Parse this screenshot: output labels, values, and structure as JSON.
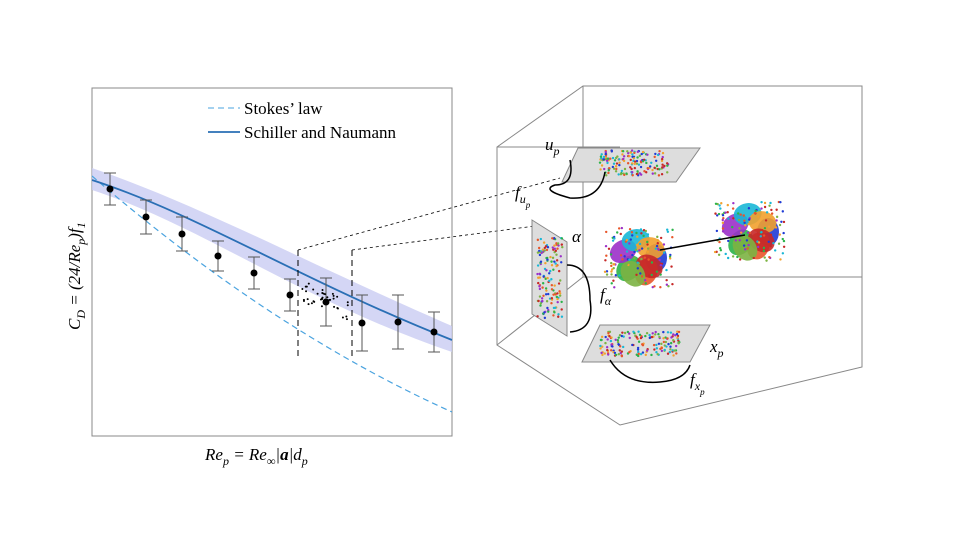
{
  "legend": {
    "items": [
      {
        "label": "Stokes’ law"
      },
      {
        "label": "Schiller and Naumann"
      }
    ]
  },
  "y_axis_label": [
    {
      "text": "C"
    },
    {
      "text": "D",
      "script": "sub"
    },
    {
      "text": " = (24/"
    },
    {
      "text": "Re"
    },
    {
      "text": "p",
      "script": "sub"
    },
    {
      "text": ")"
    },
    {
      "text": "f"
    },
    {
      "text": "1",
      "script": "sub"
    }
  ],
  "x_axis_label": [
    {
      "text": "Re"
    },
    {
      "text": "p",
      "script": "sub"
    },
    {
      "text": " = Re"
    },
    {
      "text": "∞",
      "script": "sub"
    },
    {
      "text": "|"
    },
    {
      "text": "a",
      "style": "bold"
    },
    {
      "text": "|d"
    },
    {
      "text": "p",
      "script": "sub"
    }
  ],
  "labels": {
    "u_p": [
      {
        "text": "u"
      },
      {
        "text": "p",
        "script": "sub"
      }
    ],
    "f_up": [
      {
        "text": "f"
      },
      {
        "text": "u",
        "script": "sub"
      },
      {
        "text": "p",
        "script": "subsub"
      }
    ],
    "alpha": [
      {
        "text": "α"
      }
    ],
    "f_alpha": [
      {
        "text": "f"
      },
      {
        "text": "α",
        "script": "sub"
      }
    ],
    "x_p": [
      {
        "text": "x"
      },
      {
        "text": "p",
        "script": "sub"
      }
    ],
    "f_xp": [
      {
        "text": "f"
      },
      {
        "text": "x",
        "script": "sub"
      },
      {
        "text": "p",
        "script": "subsub"
      }
    ]
  }
}
